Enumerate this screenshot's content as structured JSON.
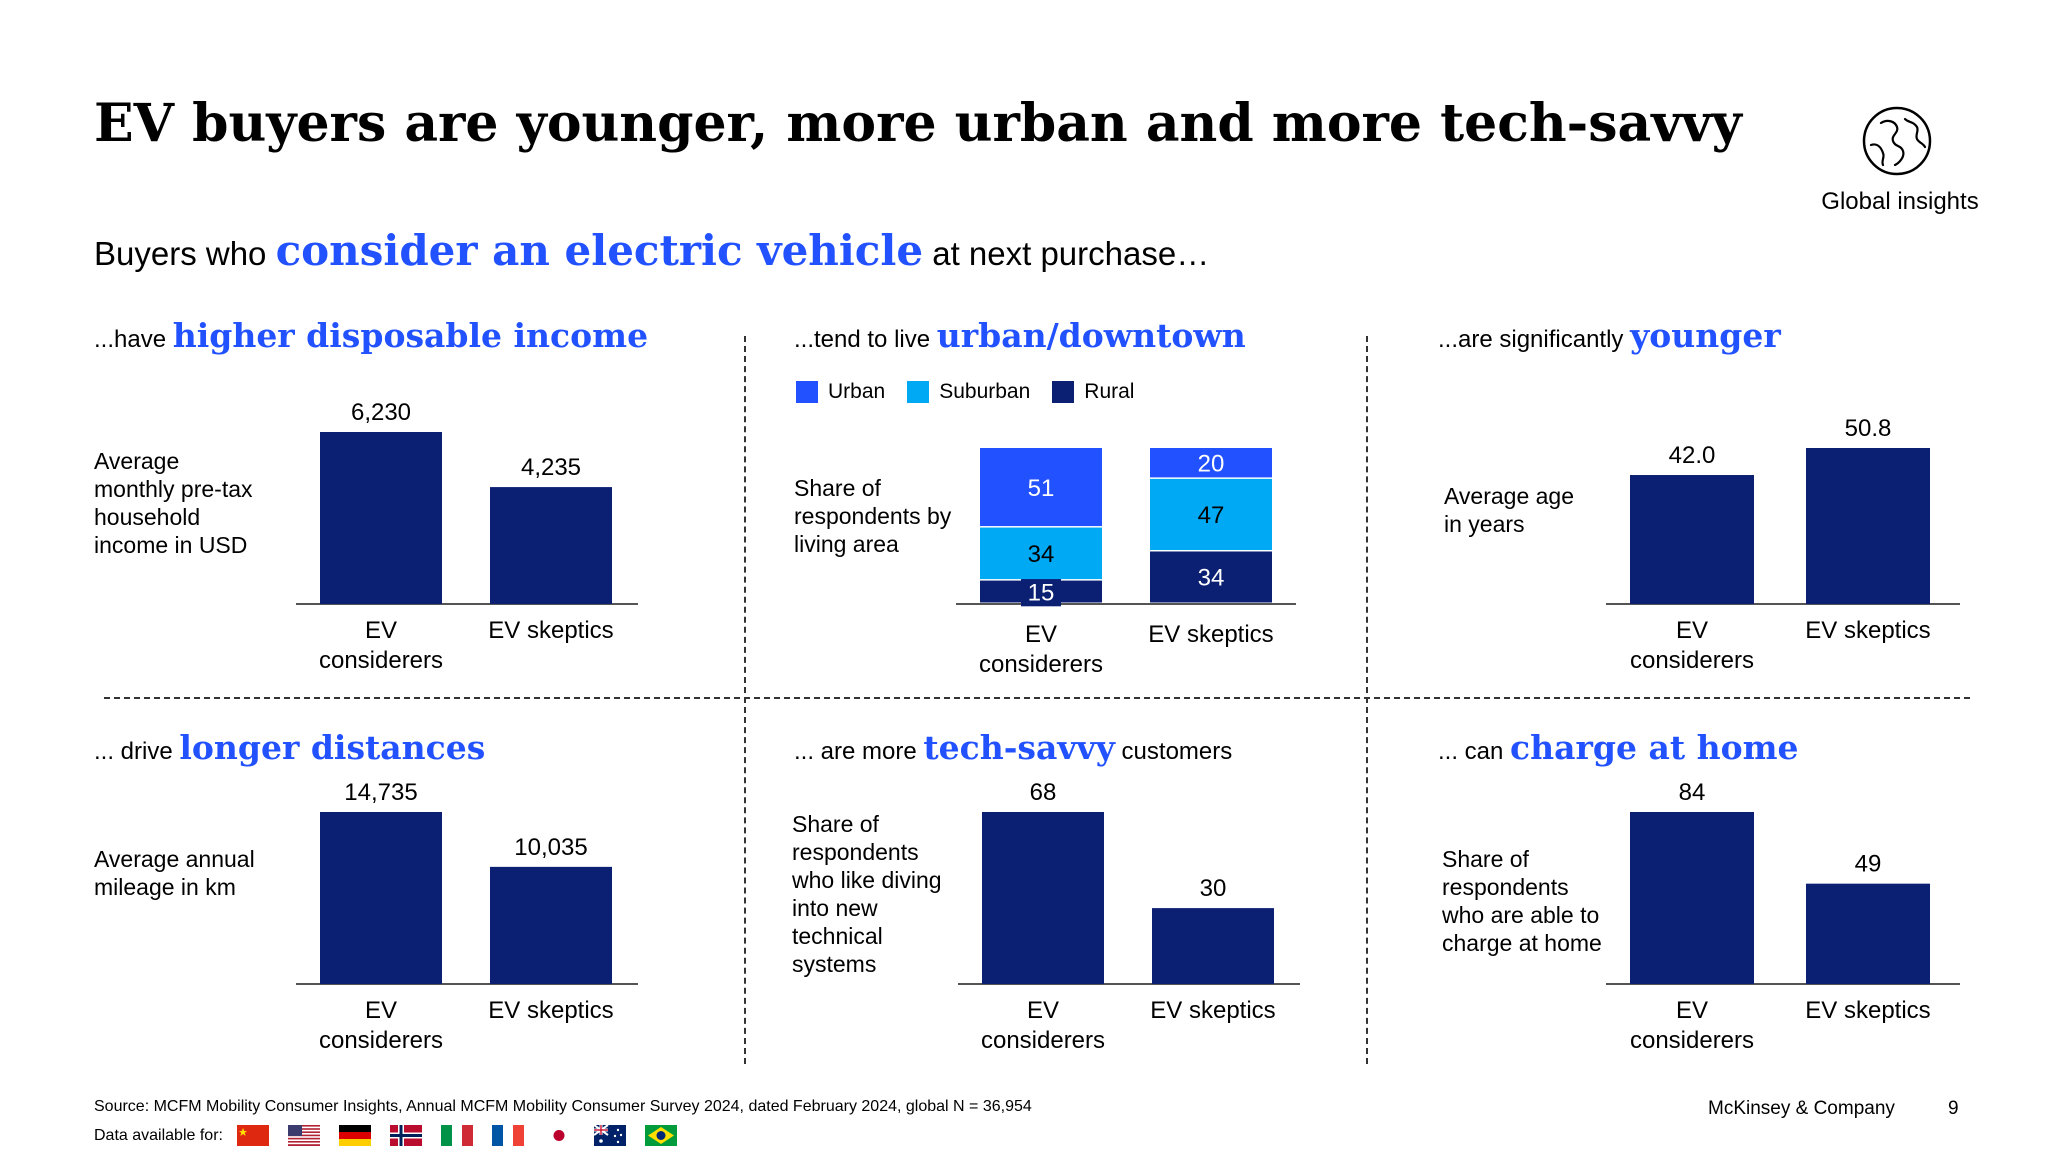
{
  "title": "EV buyers are younger, more urban and more tech-savvy",
  "badge": {
    "icon": "globe-icon",
    "label": "Global insights"
  },
  "subtitle": {
    "pre": "Buyers who ",
    "highlight": "consider an electric vehicle",
    "post": " at next purchase…"
  },
  "colors": {
    "navy": "#0b1f73",
    "urban": "#2251ff",
    "suburban": "#00a9f4",
    "rural": "#0b1f73",
    "highlight": "#2251ff"
  },
  "panels": {
    "income": {
      "pre": "...have ",
      "highlight": "higher disposable income",
      "post": "",
      "desc": "Average monthly pre-tax household income in USD"
    },
    "urban": {
      "pre": "...tend to live ",
      "highlight": "urban/downtown",
      "post": "",
      "desc": "Share of respondents by living area"
    },
    "age": {
      "pre": "...are significantly ",
      "highlight": "younger",
      "post": "",
      "desc": "Average age in years"
    },
    "distance": {
      "pre": "... drive ",
      "highlight": "longer distances",
      "post": "",
      "desc": "Average annual mileage in km"
    },
    "tech": {
      "pre": "... are more ",
      "highlight": "tech-savvy",
      "post": " customers",
      "desc": "Share of respondents who like diving into new technical systems"
    },
    "charge": {
      "pre": "... can ",
      "highlight": "charge at home",
      "post": "",
      "desc": "Share of respondents who are able to charge at home"
    }
  },
  "chart_data": [
    {
      "id": "income",
      "type": "bar",
      "categories": [
        "EV considerers",
        "EV skeptics"
      ],
      "values": [
        6230,
        4235
      ],
      "labels": [
        "6,230",
        "4,235"
      ],
      "ylim": [
        0,
        6230
      ]
    },
    {
      "id": "urban",
      "type": "bar",
      "stacked": true,
      "categories": [
        "EV considerers",
        "EV skeptics"
      ],
      "series": [
        {
          "name": "Rural",
          "values": [
            15,
            34
          ]
        },
        {
          "name": "Suburban",
          "values": [
            34,
            47
          ]
        },
        {
          "name": "Urban",
          "values": [
            51,
            20
          ]
        }
      ],
      "legend_order": [
        "Urban",
        "Suburban",
        "Rural"
      ],
      "ylim": [
        0,
        100
      ]
    },
    {
      "id": "age",
      "type": "bar",
      "categories": [
        "EV considerers",
        "EV skeptics"
      ],
      "values": [
        42.0,
        50.8
      ],
      "labels": [
        "42.0",
        "50.8"
      ],
      "ylim": [
        0,
        50.8
      ]
    },
    {
      "id": "distance",
      "type": "bar",
      "categories": [
        "EV considerers",
        "EV skeptics"
      ],
      "values": [
        14735,
        10035
      ],
      "labels": [
        "14,735",
        "10,035"
      ],
      "ylim": [
        0,
        14735
      ]
    },
    {
      "id": "tech",
      "type": "bar",
      "categories": [
        "EV considerers",
        "EV skeptics"
      ],
      "values": [
        68,
        30
      ],
      "labels": [
        "68",
        "30"
      ],
      "ylim": [
        0,
        68
      ]
    },
    {
      "id": "charge",
      "type": "bar",
      "categories": [
        "EV considerers",
        "EV skeptics"
      ],
      "values": [
        84,
        49
      ],
      "labels": [
        "84",
        "49"
      ],
      "ylim": [
        0,
        84
      ]
    }
  ],
  "footer": {
    "source": "Source: MCFM Mobility Consumer Insights, Annual MCFM Mobility Consumer Survey 2024, dated February 2024, global N = 36,954",
    "data_available": "Data available for:",
    "flags": [
      "china-flag-icon",
      "usa-flag-icon",
      "germany-flag-icon",
      "norway-flag-icon",
      "italy-flag-icon",
      "france-flag-icon",
      "japan-flag-icon",
      "australia-flag-icon",
      "brazil-flag-icon"
    ],
    "company": "McKinsey & Company",
    "page": "9"
  }
}
